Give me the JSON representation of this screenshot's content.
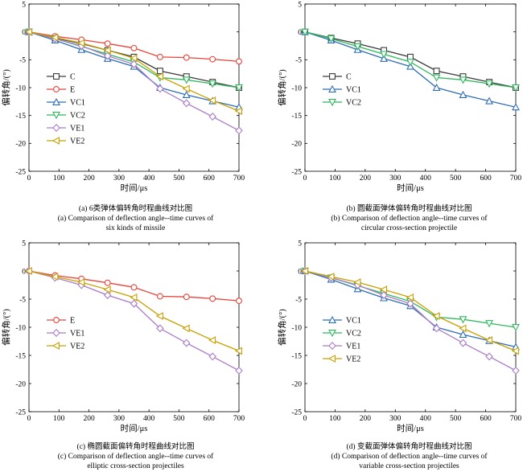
{
  "series_styles": {
    "C": {
      "color": "#3a3a3a",
      "marker": "square"
    },
    "E": {
      "color": "#e8443a",
      "marker": "circle"
    },
    "VC1": {
      "color": "#2f6db5",
      "marker": "triangle-up"
    },
    "VC2": {
      "color": "#2eb85c",
      "marker": "triangle-down"
    },
    "VE1": {
      "color": "#a87cc8",
      "marker": "diamond"
    },
    "VE2": {
      "color": "#c8a000",
      "marker": "triangle-left"
    }
  },
  "chart_data": [
    {
      "type": "line",
      "xlabel": "时间/μs",
      "ylabel": "偏转角/(°)",
      "xlim": [
        0,
        700
      ],
      "ylim": [
        -25,
        5
      ],
      "xticks": [
        0,
        100,
        200,
        300,
        400,
        500,
        600,
        700
      ],
      "yticks": [
        5,
        0,
        -5,
        -10,
        -15,
        -20,
        -25
      ],
      "caption_cn": "(a) 6类弹体偏转角时程曲线对比图",
      "caption_en": [
        "(a) Comparison of deflection angle--time curves  of",
        "six kinds of missile"
      ],
      "series": [
        {
          "name": "C",
          "x": [
            0,
            87,
            175,
            262,
            350,
            437,
            525,
            612,
            700
          ],
          "y": [
            0,
            -1.1,
            -2.1,
            -3.3,
            -4.5,
            -7.0,
            -8.0,
            -9.0,
            -10.0
          ]
        },
        {
          "name": "E",
          "x": [
            0,
            87,
            175,
            262,
            350,
            437,
            525,
            612,
            700
          ],
          "y": [
            0,
            -0.8,
            -1.4,
            -2.1,
            -2.9,
            -4.5,
            -4.6,
            -4.9,
            -5.3
          ]
        },
        {
          "name": "VC1",
          "x": [
            0,
            87,
            175,
            262,
            350,
            437,
            525,
            612,
            700
          ],
          "y": [
            0,
            -1.5,
            -3.2,
            -4.8,
            -6.2,
            -10.0,
            -11.3,
            -12.4,
            -13.5
          ]
        },
        {
          "name": "VC2",
          "x": [
            0,
            87,
            175,
            262,
            350,
            437,
            525,
            612,
            700
          ],
          "y": [
            0,
            -1.2,
            -2.6,
            -4.0,
            -5.4,
            -8.2,
            -8.6,
            -9.3,
            -10.0
          ]
        },
        {
          "name": "VE1",
          "x": [
            0,
            87,
            175,
            262,
            350,
            437,
            525,
            612,
            700
          ],
          "y": [
            0,
            -1.2,
            -2.5,
            -4.3,
            -5.8,
            -10.2,
            -12.8,
            -15.2,
            -17.7
          ]
        },
        {
          "name": "VE2",
          "x": [
            0,
            87,
            175,
            262,
            350,
            437,
            525,
            612,
            700
          ],
          "y": [
            0,
            -1.0,
            -2.0,
            -3.3,
            -4.7,
            -8.0,
            -10.2,
            -12.3,
            -14.2
          ]
        }
      ]
    },
    {
      "type": "line",
      "xlabel": "时间/μs",
      "ylabel": "偏转角/(°)",
      "xlim": [
        0,
        700
      ],
      "ylim": [
        -25,
        5
      ],
      "xticks": [
        0,
        100,
        200,
        300,
        400,
        500,
        600,
        700
      ],
      "yticks": [
        5,
        0,
        -5,
        -10,
        -15,
        -20,
        -25
      ],
      "caption_cn": "(b) 圆截面弹体偏转角时程曲线对比图",
      "caption_en": [
        "(b) Comparison of deflection angle--time curves of",
        "circular cross-section projectile"
      ],
      "series": [
        {
          "name": "C",
          "x": [
            0,
            87,
            175,
            262,
            350,
            437,
            525,
            612,
            700
          ],
          "y": [
            0,
            -1.1,
            -2.1,
            -3.3,
            -4.5,
            -7.0,
            -8.0,
            -9.0,
            -10.0
          ]
        },
        {
          "name": "VC1",
          "x": [
            0,
            87,
            175,
            262,
            350,
            437,
            525,
            612,
            700
          ],
          "y": [
            0,
            -1.5,
            -3.2,
            -4.8,
            -6.2,
            -10.0,
            -11.3,
            -12.4,
            -13.5
          ]
        },
        {
          "name": "VC2",
          "x": [
            0,
            87,
            175,
            262,
            350,
            437,
            525,
            612,
            700
          ],
          "y": [
            0,
            -1.2,
            -2.6,
            -4.0,
            -5.4,
            -8.2,
            -8.6,
            -9.3,
            -10.0
          ]
        }
      ]
    },
    {
      "type": "line",
      "xlabel": "时间/μs",
      "ylabel": "偏转角/(°)",
      "xlim": [
        0,
        700
      ],
      "ylim": [
        -25,
        5
      ],
      "xticks": [
        0,
        100,
        200,
        300,
        400,
        500,
        600,
        700
      ],
      "yticks": [
        5,
        0,
        -5,
        -10,
        -15,
        -20,
        -25
      ],
      "caption_cn": "(c) 椭圆截面偏转角时程曲线对比图",
      "caption_en": [
        "(c) Comparison of deflection angle--time curves of",
        "elliptic cross-section projectiles"
      ],
      "series": [
        {
          "name": "E",
          "x": [
            0,
            87,
            175,
            262,
            350,
            437,
            525,
            612,
            700
          ],
          "y": [
            0,
            -0.8,
            -1.4,
            -2.1,
            -2.9,
            -4.5,
            -4.6,
            -4.9,
            -5.3
          ]
        },
        {
          "name": "VE1",
          "x": [
            0,
            87,
            175,
            262,
            350,
            437,
            525,
            612,
            700
          ],
          "y": [
            0,
            -1.2,
            -2.5,
            -4.3,
            -5.8,
            -10.2,
            -12.8,
            -15.2,
            -17.7
          ]
        },
        {
          "name": "VE2",
          "x": [
            0,
            87,
            175,
            262,
            350,
            437,
            525,
            612,
            700
          ],
          "y": [
            0,
            -1.0,
            -2.0,
            -3.3,
            -4.7,
            -8.0,
            -10.2,
            -12.3,
            -14.2
          ]
        }
      ]
    },
    {
      "type": "line",
      "xlabel": "时间/μs",
      "ylabel": "偏转角/(°)",
      "xlim": [
        0,
        700
      ],
      "ylim": [
        -25,
        5
      ],
      "xticks": [
        0,
        100,
        200,
        300,
        400,
        500,
        600,
        700
      ],
      "yticks": [
        5,
        0,
        -5,
        -10,
        -15,
        -20,
        -25
      ],
      "caption_cn": "(d) 变截面弹体偏转角时程曲线对比图",
      "caption_en": [
        "(d) Comparison  of deflection angle--time curves of",
        "variable cross-section projectiles"
      ],
      "series": [
        {
          "name": "VC1",
          "x": [
            0,
            87,
            175,
            262,
            350,
            437,
            525,
            612,
            700
          ],
          "y": [
            0,
            -1.5,
            -3.2,
            -4.8,
            -6.2,
            -10.0,
            -11.3,
            -12.4,
            -13.5
          ]
        },
        {
          "name": "VC2",
          "x": [
            0,
            87,
            175,
            262,
            350,
            437,
            525,
            612,
            700
          ],
          "y": [
            0,
            -1.2,
            -2.6,
            -4.0,
            -5.4,
            -8.2,
            -8.6,
            -9.3,
            -10.0
          ]
        },
        {
          "name": "VE1",
          "x": [
            0,
            87,
            175,
            262,
            350,
            437,
            525,
            612,
            700
          ],
          "y": [
            0,
            -1.2,
            -2.5,
            -4.3,
            -5.8,
            -10.2,
            -12.8,
            -15.2,
            -17.7
          ]
        },
        {
          "name": "VE2",
          "x": [
            0,
            87,
            175,
            262,
            350,
            437,
            525,
            612,
            700
          ],
          "y": [
            0,
            -1.0,
            -2.0,
            -3.3,
            -4.7,
            -8.0,
            -10.2,
            -12.3,
            -14.2
          ]
        }
      ]
    }
  ]
}
